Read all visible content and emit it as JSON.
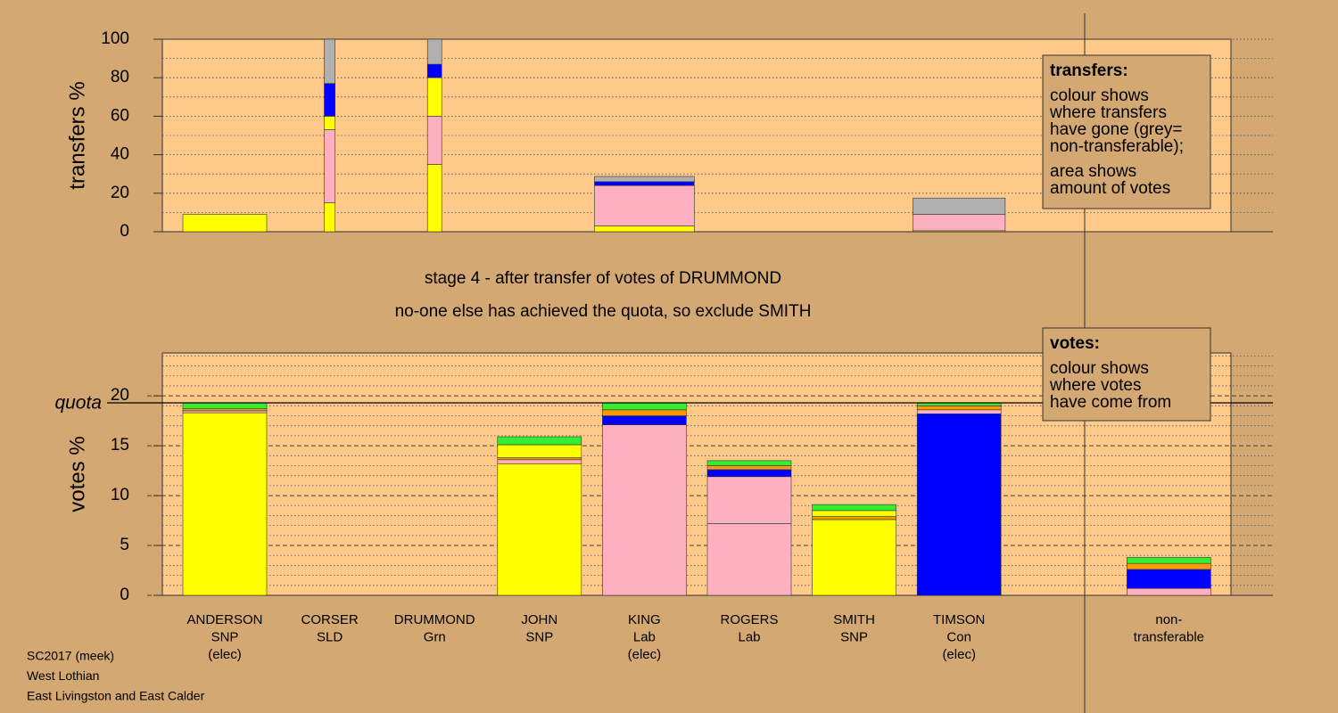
{
  "chart_data": [
    {
      "type": "stacked_bar",
      "ylabel": "transfers %",
      "ylim": [
        0,
        100
      ],
      "yticks": [
        0,
        20,
        40,
        60,
        80,
        100
      ],
      "minor_yticks": [
        10,
        30,
        50,
        70,
        90
      ],
      "widths": [
        1,
        0.13,
        0.17,
        0,
        1.19,
        0,
        0,
        1.1,
        0,
        0
      ],
      "stacks": [
        [
          {
            "color": "#ffff00",
            "value": 9
          }
        ],
        [
          {
            "color": "#ffff00",
            "value": 15
          },
          {
            "color": "#ffb0c0",
            "value": 38
          },
          {
            "color": "#ffff00",
            "value": 7
          },
          {
            "color": "#0000ff",
            "value": 17
          },
          {
            "color": "#b0b0b0",
            "value": 23
          }
        ],
        [
          {
            "color": "#ffff00",
            "value": 35
          },
          {
            "color": "#ffb0c0",
            "value": 25
          },
          {
            "color": "#ffff00",
            "value": 20
          },
          {
            "color": "#0000ff",
            "value": 7
          },
          {
            "color": "#b0b0b0",
            "value": 13
          }
        ],
        [],
        [
          {
            "color": "#ffff00",
            "value": 3
          },
          {
            "color": "#ffb0c0",
            "value": 21
          },
          {
            "color": "#0000ff",
            "value": 2
          },
          {
            "color": "#b0b0b0",
            "value": 2.7
          }
        ],
        [],
        [],
        [
          {
            "color": "#ffff00",
            "value": 0.5
          },
          {
            "color": "#ffb0c0",
            "value": 8.5
          },
          {
            "color": "#b0b0b0",
            "value": 8.5
          }
        ],
        [],
        []
      ],
      "note": {
        "heading": "transfers:",
        "lines": [
          [
            "colour shows",
            "where transfers",
            "have gone (grey=",
            "non-transferable);"
          ],
          [
            "area shows",
            "amount of votes"
          ]
        ]
      }
    },
    {
      "type": "stacked_bar",
      "title": [
        "stage 4 - after transfer of votes of DRUMMOND",
        "no-one else has achieved the quota, so exclude SMITH"
      ],
      "ylabel": "votes %",
      "ylim": [
        0,
        24.3
      ],
      "yticks": [
        0,
        5,
        10,
        15,
        20
      ],
      "minor_yticks": [
        1,
        2,
        3,
        4,
        6,
        7,
        8,
        9,
        11,
        12,
        13,
        14,
        16,
        17,
        18,
        19,
        21,
        22,
        23,
        24
      ],
      "quota": 19.3,
      "quota_label": "quota",
      "categories": [
        [
          "ANDERSON",
          "SNP",
          "(elec)"
        ],
        [
          "CORSER",
          "SLD"
        ],
        [
          "DRUMMOND",
          "Grn"
        ],
        [
          "JOHN",
          "SNP"
        ],
        [
          "KING",
          "Lab",
          "(elec)"
        ],
        [
          "ROGERS",
          "Lab"
        ],
        [
          "SMITH",
          "SNP"
        ],
        [
          "TIMSON",
          "Con",
          "(elec)"
        ],
        null,
        [
          "non-",
          "transferable"
        ]
      ],
      "stacks": [
        [
          {
            "color": "#ffff00",
            "value": 18.3
          },
          {
            "color": "#ffb0c0",
            "value": 0.2
          },
          {
            "color": "#ff9900",
            "value": 0.2
          },
          {
            "color": "#33ee33",
            "value": 0.6
          }
        ],
        [],
        [],
        [
          {
            "color": "#ffff00",
            "value": 13.2
          },
          {
            "color": "#ffb0c0",
            "value": 0.4
          },
          {
            "color": "#ff9900",
            "value": 0.2
          },
          {
            "color": "#ffff00",
            "value": 1.3
          },
          {
            "color": "#33ee33",
            "value": 0.8
          }
        ],
        [
          {
            "color": "#ffb0c0",
            "value": 17.1
          },
          {
            "color": "#0000ff",
            "value": 0.9
          },
          {
            "color": "#ff9900",
            "value": 0.6
          },
          {
            "color": "#33ee33",
            "value": 0.7
          }
        ],
        [
          {
            "color": "#ffb0c0",
            "value": 7.2
          },
          {
            "color": "#ffb0c0",
            "value": 4.7
          },
          {
            "color": "#0000ff",
            "value": 0.7
          },
          {
            "color": "#ff9900",
            "value": 0.4
          },
          {
            "color": "#33ee33",
            "value": 0.5
          }
        ],
        [
          {
            "color": "#ffff00",
            "value": 7.6
          },
          {
            "color": "#ff9900",
            "value": 0.3
          },
          {
            "color": "#ffff00",
            "value": 0.6
          },
          {
            "color": "#33ee33",
            "value": 0.6
          }
        ],
        [
          {
            "color": "#0000ff",
            "value": 18.2
          },
          {
            "color": "#ffb0c0",
            "value": 0.4
          },
          {
            "color": "#ff9900",
            "value": 0.4
          },
          {
            "color": "#33ee33",
            "value": 0.3
          }
        ],
        [],
        [
          {
            "color": "#ffb0c0",
            "value": 0.7
          },
          {
            "color": "#0000ff",
            "value": 1.9
          },
          {
            "color": "#ff9900",
            "value": 0.6
          },
          {
            "color": "#33ee33",
            "value": 0.6
          }
        ]
      ],
      "note": {
        "heading": "votes:",
        "lines": [
          [
            "colour shows",
            "where votes",
            "have come from"
          ]
        ]
      }
    }
  ],
  "footer": [
    "SC2017 (meek)",
    "West Lothian",
    "East Livingston and East Calder"
  ]
}
